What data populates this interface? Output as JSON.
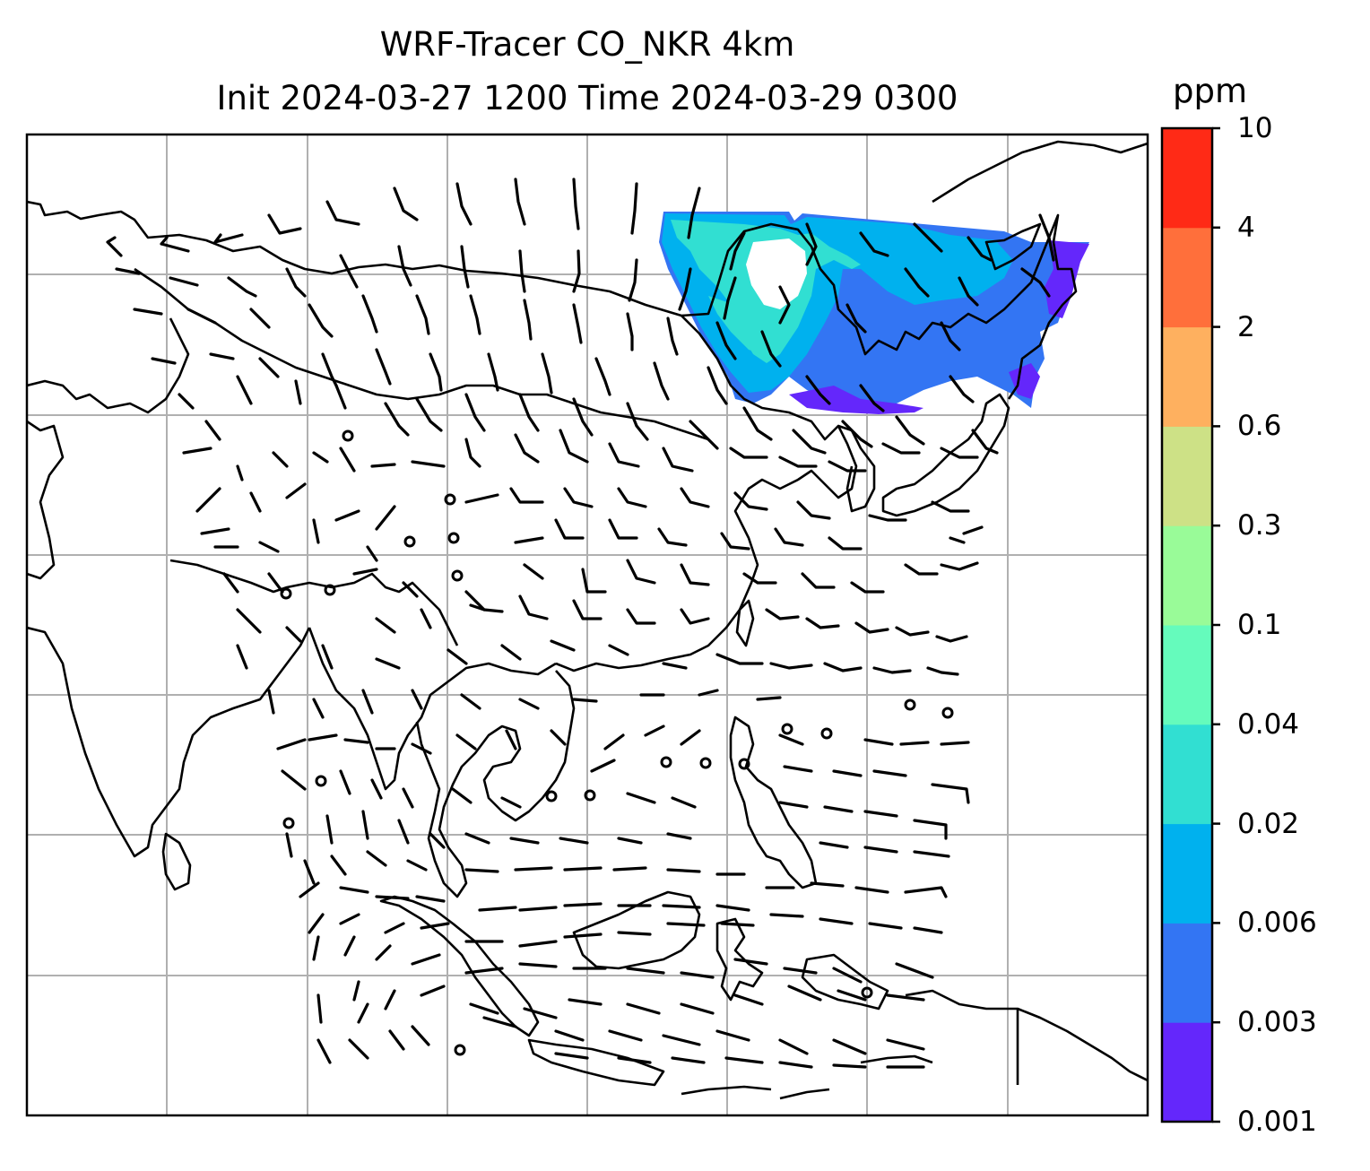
{
  "title": {
    "line1": "WRF-Tracer CO_NKR 4km",
    "line2": "Init 2024-03-27 1200 Time 2024-03-29 0300"
  },
  "colorbar": {
    "label": "ppm",
    "levels": [
      "0.001",
      "0.003",
      "0.006",
      "0.02",
      "0.04",
      "0.1",
      "0.3",
      "0.6",
      "2",
      "4",
      "10"
    ],
    "colors": [
      "#6427fb",
      "#3375f3",
      "#00b1ee",
      "#31dfd2",
      "#65fbbc",
      "#99fb98",
      "#cde186",
      "#feb05f",
      "#ff6f3b",
      "#ff2a16"
    ]
  },
  "map": {
    "field": "CO_NKR tracer concentration with wind barbs",
    "background": "#ffffff",
    "coastline_color": "#000000",
    "grid_color": "#b0b0b0"
  }
}
